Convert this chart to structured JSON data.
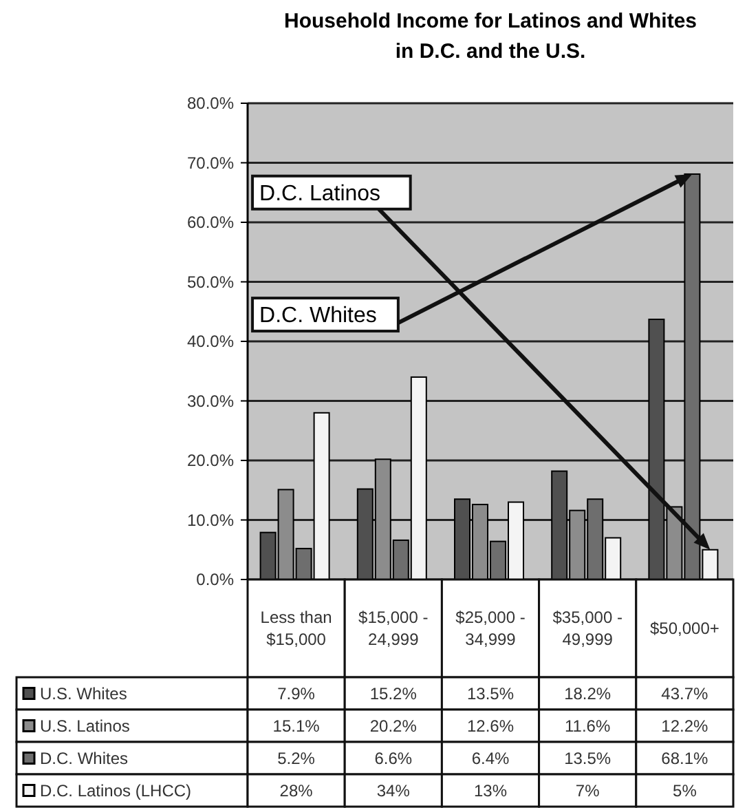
{
  "chart_data": {
    "type": "bar",
    "title": "Household Income for Latinos and Whites\nin D.C. and the U.S.",
    "categories": [
      "Less than $15,000",
      "$15,000 - 24,999",
      "$25,000 - 34,999",
      "$35,000 - 49,999",
      "$50,000+"
    ],
    "series": [
      {
        "name": "U.S. Whites",
        "color": "#505050",
        "values": [
          7.9,
          15.2,
          13.5,
          18.2,
          43.7
        ],
        "value_labels": [
          "7.9%",
          "15.2%",
          "13.5%",
          "18.2%",
          "43.7%"
        ]
      },
      {
        "name": "U.S. Latinos",
        "color": "#8c8c8c",
        "values": [
          15.1,
          20.2,
          12.6,
          11.6,
          12.2
        ],
        "value_labels": [
          "15.1%",
          "20.2%",
          "12.6%",
          "11.6%",
          "12.2%"
        ]
      },
      {
        "name": "D.C. Whites",
        "color": "#6e6e6e",
        "values": [
          5.2,
          6.6,
          6.4,
          13.5,
          68.1
        ],
        "value_labels": [
          "5.2%",
          "6.6%",
          "6.4%",
          "13.5%",
          "68.1%"
        ]
      },
      {
        "name": "D.C. Latinos (LHCC)",
        "color": "#f4f4f4",
        "values": [
          28,
          34,
          13,
          7,
          5
        ],
        "value_labels": [
          "28%",
          "34%",
          "13%",
          "7%",
          "5%"
        ]
      }
    ],
    "ylim": [
      0,
      80
    ],
    "yticks": [
      {
        "value": 0,
        "label": "0.0%"
      },
      {
        "value": 10,
        "label": "10.0%"
      },
      {
        "value": 20,
        "label": "20.0%"
      },
      {
        "value": 30,
        "label": "30.0%"
      },
      {
        "value": 40,
        "label": "40.0%"
      },
      {
        "value": 50,
        "label": "50.0%"
      },
      {
        "value": 60,
        "label": "60.0%"
      },
      {
        "value": 70,
        "label": "70.0%"
      },
      {
        "value": 80,
        "label": "80.0%"
      }
    ],
    "grid": "y",
    "legend": "bottom",
    "annotations": [
      "D.C. Latinos",
      "D.C. Whites"
    ]
  }
}
